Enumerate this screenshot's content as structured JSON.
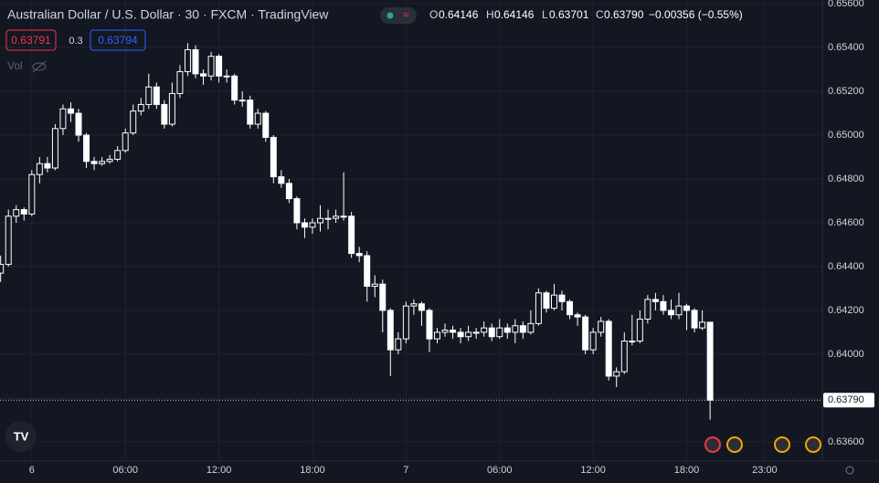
{
  "chart_data": {
    "type": "candlestick",
    "title": "Australian Dollar / U.S. Dollar · 30 · FXCM · TradingView",
    "header": {
      "o": "O",
      "open": "0.64146",
      "h": "H",
      "high": "0.64146",
      "l": "L",
      "low": "0.63701",
      "c": "C",
      "close": "0.63790",
      "change": "−0.00356 (−0.55%)"
    },
    "sell_price": "0.63791",
    "spread": "0.3",
    "buy_price": "0.63794",
    "volume_label": "Vol",
    "last_price_label": "0.63790",
    "x": [
      -2,
      -1.5,
      -1,
      -0.5,
      0,
      0.5,
      1,
      1.5,
      2,
      2.5,
      3,
      3.5,
      4,
      4.5,
      5,
      5.5,
      6,
      6.5,
      7,
      7.5,
      8,
      8.5,
      9,
      9.5,
      10,
      10.5,
      11,
      11.5,
      12,
      12.5,
      13,
      13.5,
      14,
      14.5,
      15,
      15.5,
      16,
      16.5,
      17,
      17.5,
      18,
      18.5,
      19,
      19.5,
      20,
      20.5,
      21,
      21.5,
      22,
      22.5,
      23,
      23.5,
      24,
      24.5,
      25,
      25.5,
      26,
      26.5,
      27,
      27.5,
      28,
      28.5,
      29,
      29.5,
      30,
      30.5,
      31,
      31.5,
      32,
      32.5,
      33,
      33.5,
      34,
      34.5,
      35,
      35.5,
      36,
      36.5,
      37,
      37.5,
      38,
      38.5,
      39,
      39.5,
      40,
      40.5,
      41,
      41.5,
      42,
      42.5,
      43,
      43.5
    ],
    "series": [
      {
        "name": "AUDUSD",
        "up_color": "#131722",
        "down_color": "#ffffff",
        "line_color": "#ffffff",
        "open": [
          0.6437,
          0.6441,
          0.6463,
          0.6466,
          0.6464,
          0.6482,
          0.6487,
          0.6485,
          0.6503,
          0.6512,
          0.651,
          0.65,
          0.6488,
          0.6487,
          0.6488,
          0.6489,
          0.6493,
          0.6501,
          0.6511,
          0.6514,
          0.6522,
          0.6514,
          0.6505,
          0.6519,
          0.6529,
          0.6539,
          0.6528,
          0.6527,
          0.6536,
          0.6527,
          0.6527,
          0.6516,
          0.6516,
          0.6505,
          0.651,
          0.6499,
          0.6481,
          0.6478,
          0.6471,
          0.646,
          0.6458,
          0.646,
          0.6462,
          0.6462,
          0.6463,
          0.6463,
          0.6446,
          0.6445,
          0.6431,
          0.6432,
          0.642,
          0.6402,
          0.6407,
          0.6422,
          0.6423,
          0.642,
          0.6407,
          0.641,
          0.6411,
          0.641,
          0.6408,
          0.641,
          0.641,
          0.6412,
          0.6408,
          0.6412,
          0.641,
          0.6413,
          0.641,
          0.6414,
          0.6428,
          0.6421,
          0.6427,
          0.6424,
          0.6418,
          0.6417,
          0.6402,
          0.641,
          0.6415,
          0.639,
          0.6392,
          0.6406,
          0.6406,
          0.6416,
          0.6425,
          0.6424,
          0.642,
          0.6418,
          0.6422,
          0.642,
          0.6412,
          0.64146
        ],
        "high": [
          0.6445,
          0.6466,
          0.6468,
          0.6467,
          0.6484,
          0.649,
          0.649,
          0.6505,
          0.6514,
          0.6515,
          0.6512,
          0.6501,
          0.649,
          0.649,
          0.6491,
          0.6495,
          0.6503,
          0.6514,
          0.6517,
          0.6528,
          0.6524,
          0.6516,
          0.6524,
          0.6532,
          0.6542,
          0.6541,
          0.653,
          0.6538,
          0.6537,
          0.653,
          0.6528,
          0.652,
          0.6518,
          0.6512,
          0.6511,
          0.65,
          0.6484,
          0.648,
          0.6472,
          0.6462,
          0.6462,
          0.6468,
          0.6466,
          0.6466,
          0.6483,
          0.6465,
          0.6449,
          0.6447,
          0.6436,
          0.6434,
          0.6421,
          0.641,
          0.6424,
          0.6425,
          0.6424,
          0.6421,
          0.6412,
          0.6414,
          0.6413,
          0.6412,
          0.6413,
          0.6412,
          0.6415,
          0.6414,
          0.6416,
          0.6414,
          0.6416,
          0.6415,
          0.642,
          0.643,
          0.6429,
          0.6432,
          0.6429,
          0.6425,
          0.6419,
          0.6418,
          0.6412,
          0.6417,
          0.6416,
          0.6394,
          0.641,
          0.6418,
          0.642,
          0.6427,
          0.6428,
          0.6427,
          0.6425,
          0.6428,
          0.6423,
          0.6421,
          0.642,
          0.64146
        ],
        "low": [
          0.6433,
          0.644,
          0.646,
          0.6461,
          0.6463,
          0.6478,
          0.6483,
          0.6484,
          0.65,
          0.6506,
          0.6497,
          0.6485,
          0.6484,
          0.6486,
          0.6487,
          0.6488,
          0.6492,
          0.65,
          0.6509,
          0.6512,
          0.6512,
          0.6503,
          0.6504,
          0.6517,
          0.6527,
          0.6526,
          0.6523,
          0.6525,
          0.6524,
          0.6524,
          0.6514,
          0.6513,
          0.6503,
          0.6503,
          0.6497,
          0.6478,
          0.6476,
          0.6469,
          0.6457,
          0.6453,
          0.6455,
          0.6456,
          0.6457,
          0.646,
          0.6461,
          0.6444,
          0.6442,
          0.6424,
          0.6426,
          0.641,
          0.639,
          0.64,
          0.6405,
          0.6418,
          0.6413,
          0.6401,
          0.6405,
          0.6408,
          0.6407,
          0.6405,
          0.6406,
          0.6407,
          0.6408,
          0.6406,
          0.6407,
          0.6407,
          0.6405,
          0.6407,
          0.6409,
          0.6413,
          0.6419,
          0.642,
          0.642,
          0.6416,
          0.6413,
          0.64,
          0.64,
          0.6408,
          0.6388,
          0.6385,
          0.6391,
          0.6404,
          0.6405,
          0.6414,
          0.642,
          0.6418,
          0.6416,
          0.6416,
          0.6411,
          0.641,
          0.6411,
          0.63701
        ],
        "close": [
          0.6441,
          0.6463,
          0.6466,
          0.6464,
          0.6482,
          0.6487,
          0.6485,
          0.6503,
          0.6512,
          0.651,
          0.65,
          0.6488,
          0.6487,
          0.6488,
          0.6489,
          0.6493,
          0.6501,
          0.6511,
          0.6514,
          0.6522,
          0.6514,
          0.6505,
          0.6519,
          0.6529,
          0.6539,
          0.6528,
          0.6527,
          0.6536,
          0.6527,
          0.6527,
          0.6516,
          0.6516,
          0.6505,
          0.651,
          0.6499,
          0.6481,
          0.6478,
          0.6471,
          0.646,
          0.6458,
          0.646,
          0.6462,
          0.6462,
          0.6463,
          0.6463,
          0.6446,
          0.6445,
          0.6431,
          0.6432,
          0.642,
          0.6402,
          0.6407,
          0.6422,
          0.6423,
          0.642,
          0.6407,
          0.641,
          0.6411,
          0.641,
          0.6408,
          0.641,
          0.641,
          0.6412,
          0.6408,
          0.6412,
          0.641,
          0.6413,
          0.641,
          0.6414,
          0.6428,
          0.6421,
          0.6427,
          0.6424,
          0.6418,
          0.6417,
          0.6402,
          0.641,
          0.6415,
          0.639,
          0.6392,
          0.6406,
          0.6406,
          0.6416,
          0.6425,
          0.6424,
          0.642,
          0.6418,
          0.6422,
          0.642,
          0.6412,
          0.64146,
          0.6379
        ]
      }
    ],
    "xlim": [
      -2.04,
      50.7
    ],
    "xticks": [
      {
        "value": 0,
        "label": "6"
      },
      {
        "value": 6,
        "label": "06:00"
      },
      {
        "value": 12,
        "label": "12:00"
      },
      {
        "value": 18,
        "label": "18:00"
      },
      {
        "value": 24,
        "label": "7"
      },
      {
        "value": 30,
        "label": "06:00"
      },
      {
        "value": 36,
        "label": "12:00"
      },
      {
        "value": 42,
        "label": "18:00"
      },
      {
        "value": 47,
        "label": "23:00"
      }
    ],
    "ylim": [
      0.63512,
      0.65617
    ],
    "yticks": [
      {
        "value": 0.636,
        "label": "0.63600"
      },
      {
        "value": 0.638,
        "label": "0.63800"
      },
      {
        "value": 0.64,
        "label": "0.64000"
      },
      {
        "value": 0.642,
        "label": "0.64200"
      },
      {
        "value": 0.644,
        "label": "0.64400"
      },
      {
        "value": 0.646,
        "label": "0.64600"
      },
      {
        "value": 0.648,
        "label": "0.64800"
      },
      {
        "value": 0.65,
        "label": "0.65000"
      },
      {
        "value": 0.652,
        "label": "0.65200"
      },
      {
        "value": 0.654,
        "label": "0.65400"
      },
      {
        "value": 0.656,
        "label": "0.65600"
      }
    ],
    "grid": true
  }
}
